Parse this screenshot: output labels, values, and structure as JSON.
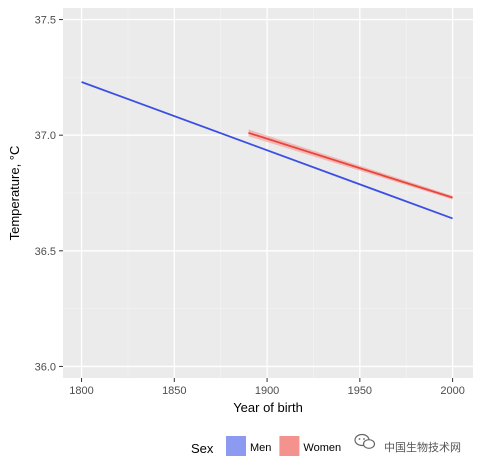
{
  "chart_data": {
    "type": "line",
    "xlabel": "Year of birth",
    "ylabel": "Temperature, °C",
    "xlim": [
      1790,
      2011
    ],
    "ylim": [
      35.95,
      37.55
    ],
    "x_ticks": [
      1800,
      1850,
      1900,
      1950,
      2000
    ],
    "x_tick_labels": [
      "1800",
      "1850",
      "1900",
      "1950",
      "2000"
    ],
    "y_ticks": [
      36.0,
      36.5,
      37.0,
      37.5
    ],
    "y_tick_labels": [
      "36.0",
      "36.5",
      "37.0",
      "37.5"
    ],
    "grid": true,
    "legend": {
      "title": "Sex",
      "position": "bottom"
    },
    "series": [
      {
        "name": "Men",
        "color": "#3B4FE4",
        "fill": "#8C9AF2",
        "x": [
          1800,
          2000
        ],
        "y": [
          37.23,
          36.64
        ]
      },
      {
        "name": "Women",
        "color": "#E8453C",
        "fill": "#F4928D",
        "x": [
          1890,
          2000
        ],
        "y": [
          37.01,
          36.73
        ],
        "band_upper": [
          37.025,
          36.738
        ],
        "band_lower": [
          36.995,
          36.722
        ]
      }
    ]
  },
  "watermark": {
    "text": "中国生物技术网"
  }
}
